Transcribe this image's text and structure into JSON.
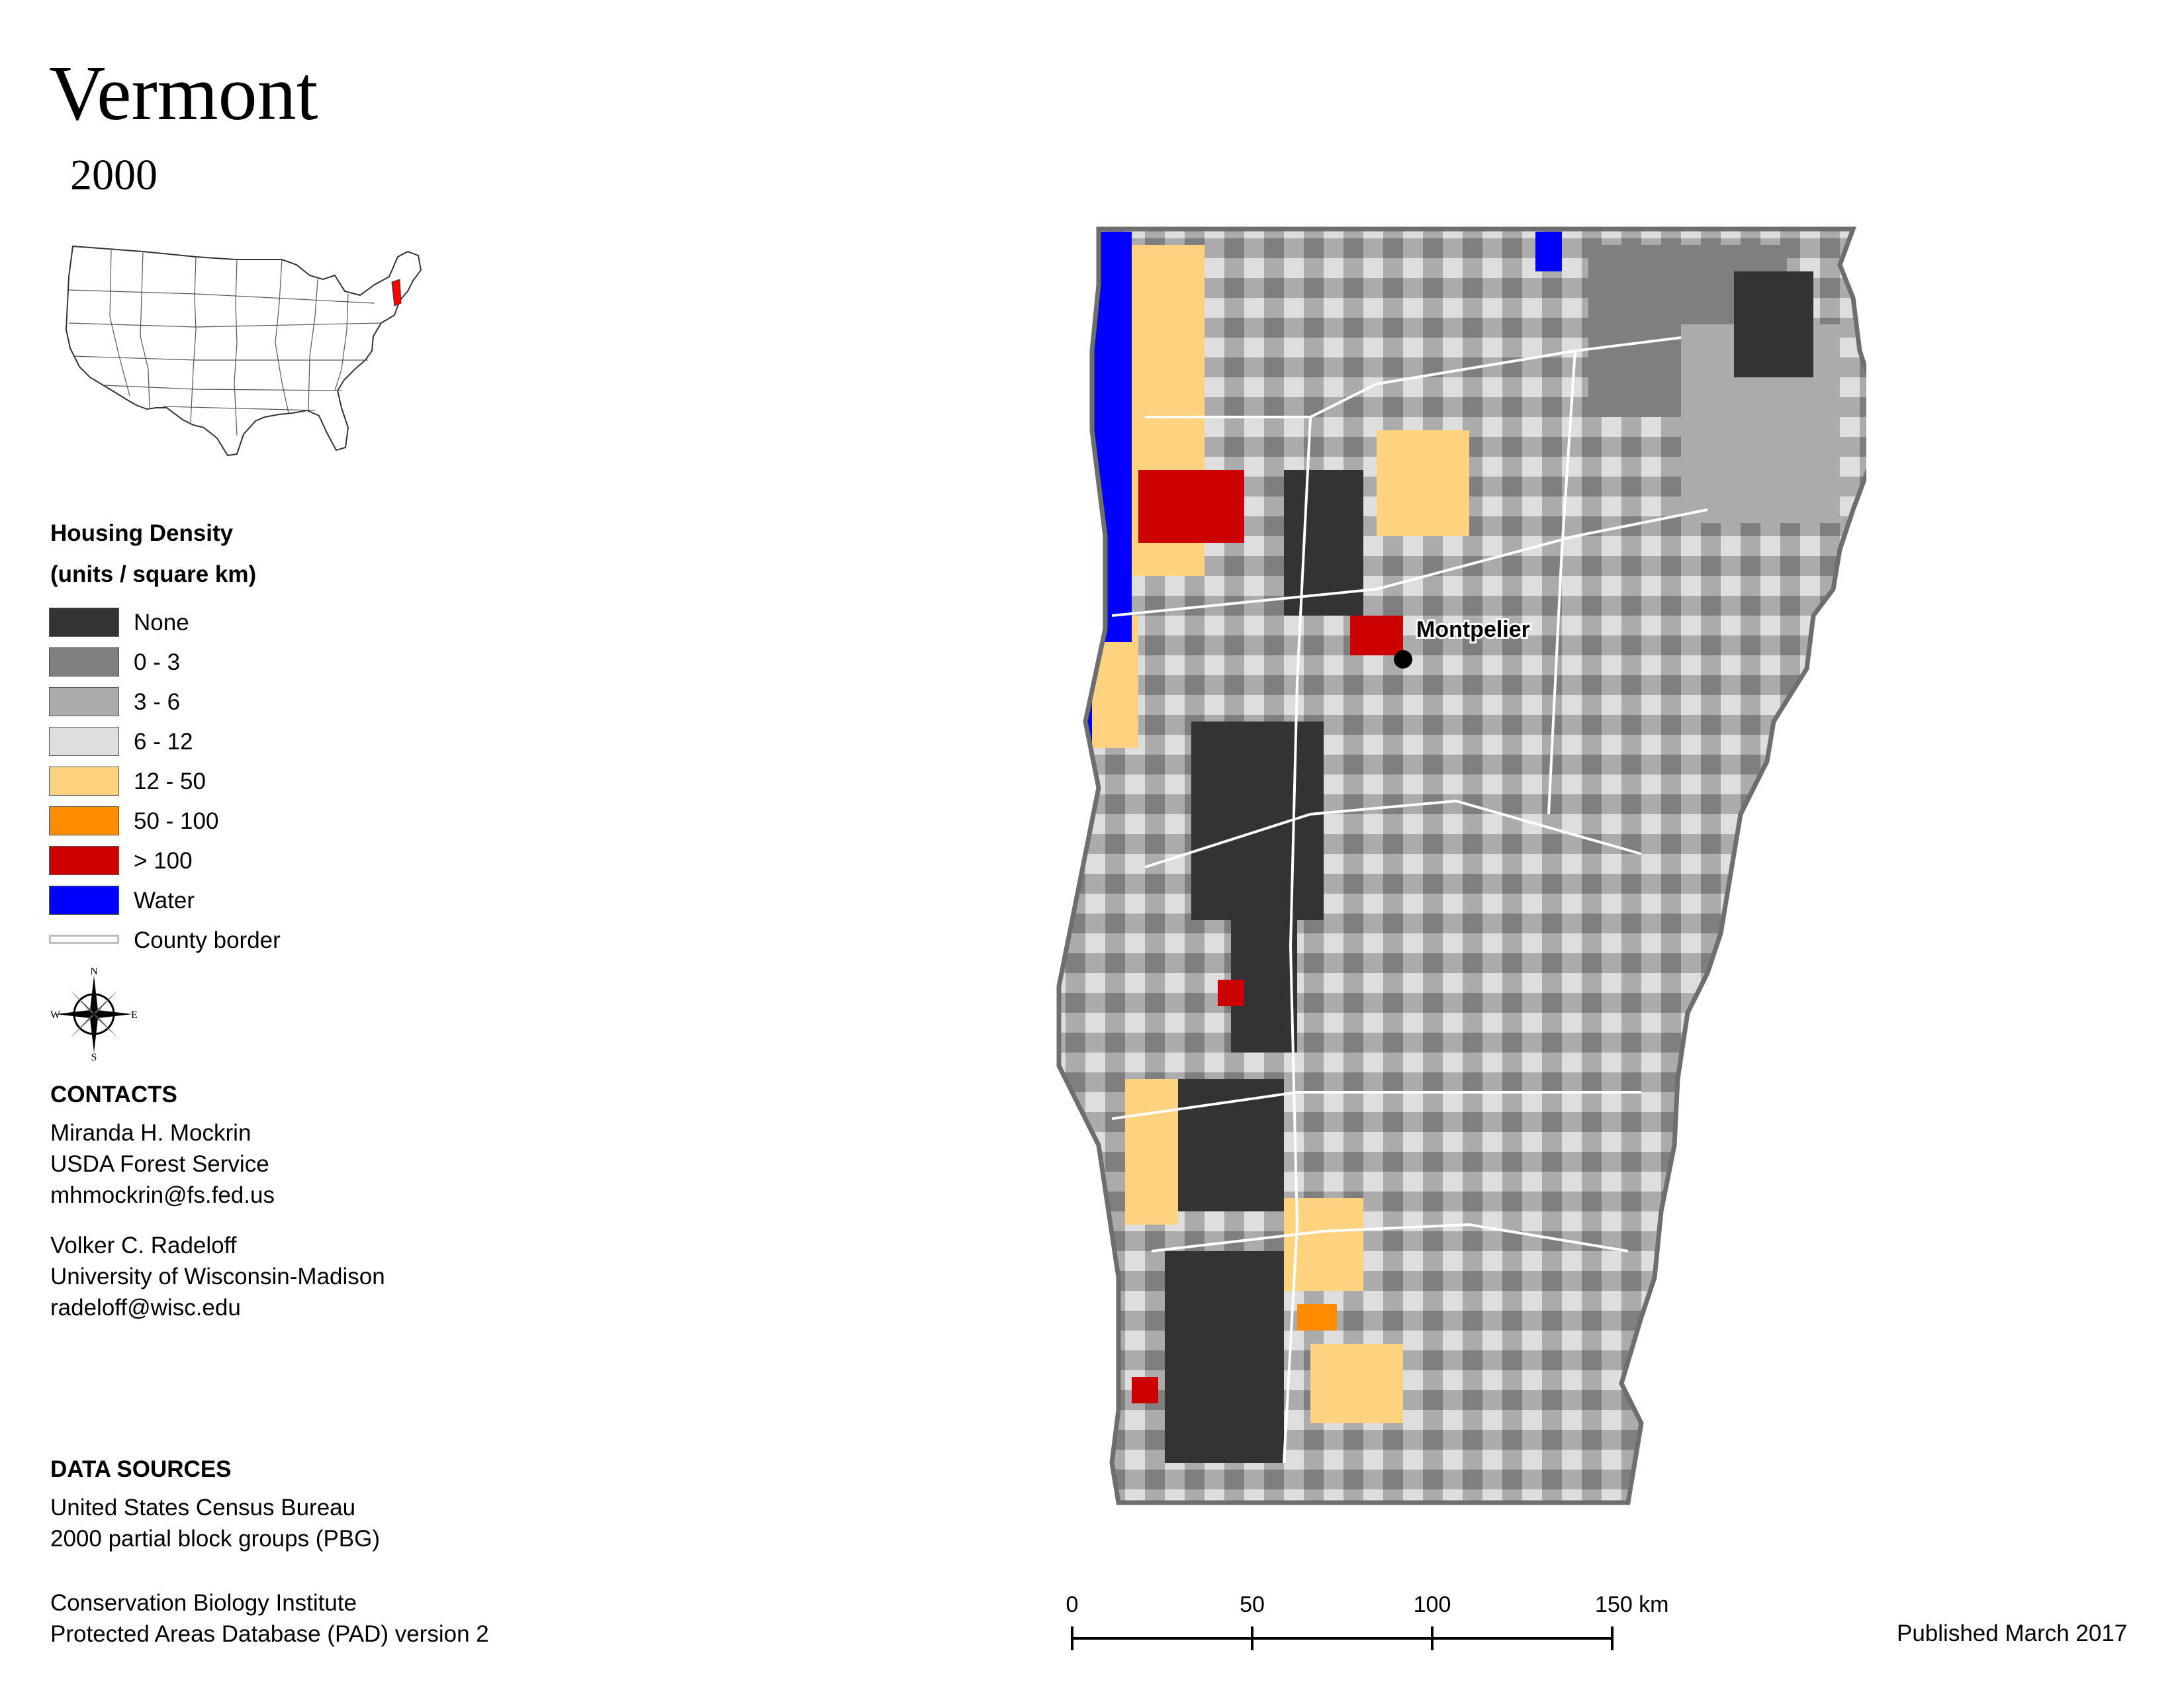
{
  "title": "Vermont",
  "subtitle": "2000",
  "locator_map": {
    "highlight_color": "#ff0000"
  },
  "legend": {
    "title": "Housing Density",
    "units": "(units / square km)",
    "items": [
      {
        "label": "None",
        "color": "#333333"
      },
      {
        "label": "0 - 3",
        "color": "#7f7f7f"
      },
      {
        "label": "3 - 6",
        "color": "#ababab"
      },
      {
        "label": "6 - 12",
        "color": "#dedede"
      },
      {
        "label": "12 - 50",
        "color": "#ffd27f"
      },
      {
        "label": "50 - 100",
        "color": "#ff8c00"
      },
      {
        "label": "> 100",
        "color": "#cc0000"
      },
      {
        "label": "Water",
        "color": "#0000ff"
      }
    ],
    "county_border_label": "County border"
  },
  "compass": {
    "n": "N",
    "s": "S",
    "e": "E",
    "w": "W"
  },
  "contacts": {
    "title": "CONTACTS",
    "people": [
      {
        "name": "Miranda H. Mockrin",
        "org": "USDA Forest Service",
        "email": "mhmockrin@fs.fed.us"
      },
      {
        "name": "Volker C. Radeloff",
        "org": "University of Wisconsin-Madison",
        "email": "radeloff@wisc.edu"
      }
    ]
  },
  "data_sources": {
    "title": "DATA SOURCES",
    "sources": [
      {
        "line1": "United States Census Bureau",
        "line2": "2000 partial block groups (PBG)"
      },
      {
        "line1": "Conservation Biology Institute",
        "line2": "Protected Areas Database (PAD) version 2"
      }
    ]
  },
  "map": {
    "city_label": "Montpelier"
  },
  "scale_bar": {
    "ticks": [
      "0",
      "50",
      "100",
      "150 km"
    ]
  },
  "published": "Published March 2017"
}
